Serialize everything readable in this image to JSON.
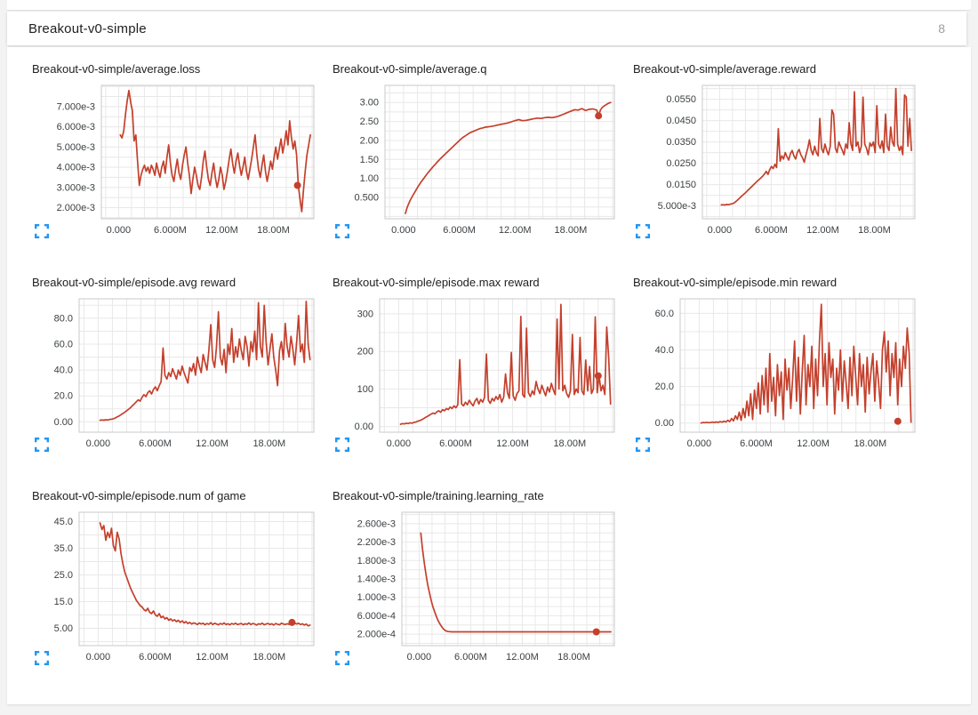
{
  "header": {
    "title": "Breakout-v0-simple",
    "badge": "8"
  },
  "colors": {
    "line": "#c4402c",
    "grid": "#e8e8e8",
    "plot_border": "#c9c9c9",
    "tick_text": "#3c4043",
    "icon_blue": "#2196f3"
  },
  "icons": {
    "fullscreen": "fullscreen-expand-icon"
  },
  "x_axis": {
    "xlim": [
      -2.0,
      22.7
    ],
    "minor_step": 1.5,
    "ticks": [
      {
        "v": 0,
        "label": "0.000"
      },
      {
        "v": 6,
        "label": "6.000M"
      },
      {
        "v": 12,
        "label": "12.00M"
      },
      {
        "v": 18,
        "label": "18.00M"
      }
    ]
  },
  "chart_data": [
    {
      "type": "line",
      "title": "Breakout-v0-simple/average.loss",
      "ylim": [
        0.00145,
        0.00805
      ],
      "y_grid_step": 0.0005,
      "y_ticks": [
        {
          "v": 0.002,
          "label": "2.000e-3"
        },
        {
          "v": 0.003,
          "label": "3.000e-3"
        },
        {
          "v": 0.004,
          "label": "4.000e-3"
        },
        {
          "v": 0.005,
          "label": "5.000e-3"
        },
        {
          "v": 0.006,
          "label": "6.000e-3"
        },
        {
          "v": 0.007,
          "label": "7.000e-3"
        }
      ],
      "x_start": 0.2,
      "x_end": 22.3,
      "value_scale": 0.001,
      "values": [
        5.6,
        5.45,
        5.8,
        6.6,
        7.3,
        7.8,
        7.2,
        6.8,
        5.3,
        5.6,
        4.3,
        3.1,
        3.6,
        3.9,
        4.1,
        3.8,
        4.0,
        3.7,
        4.1,
        3.9,
        3.6,
        4.2,
        3.8,
        3.5,
        4.0,
        4.3,
        3.7,
        4.5,
        5.1,
        4.2,
        3.6,
        3.3,
        3.9,
        4.4,
        3.7,
        3.4,
        4.1,
        4.6,
        5.0,
        4.2,
        3.6,
        2.7,
        3.4,
        4.0,
        3.6,
        3.1,
        2.9,
        3.5,
        4.3,
        4.8,
        4.0,
        3.4,
        3.1,
        3.7,
        4.2,
        3.5,
        3.0,
        3.4,
        4.0,
        3.6,
        2.9,
        3.3,
        3.8,
        4.4,
        4.9,
        4.2,
        3.7,
        4.3,
        4.7,
        4.1,
        3.6,
        4.0,
        4.5,
        3.8,
        3.4,
        3.9,
        4.4,
        5.0,
        5.6,
        4.6,
        3.9,
        3.5,
        4.1,
        4.6,
        3.8,
        3.3,
        3.8,
        4.3,
        3.9,
        4.5,
        5.0,
        4.4,
        4.9,
        5.4,
        4.7,
        5.2,
        5.8,
        5.1,
        6.3,
        5.5,
        4.9,
        5.3,
        4.6,
        3.1,
        2.4,
        1.8,
        2.9,
        3.8,
        4.6,
        5.1,
        5.6
      ],
      "marker": {
        "x": 20.8,
        "y": 0.0031
      }
    },
    {
      "type": "line",
      "title": "Breakout-v0-simple/average.q",
      "ylim": [
        -0.06,
        3.45
      ],
      "y_grid_step": 0.25,
      "y_ticks": [
        {
          "v": 0.5,
          "label": "0.500"
        },
        {
          "v": 1.0,
          "label": "1.00"
        },
        {
          "v": 1.5,
          "label": "1.50"
        },
        {
          "v": 2.0,
          "label": "2.00"
        },
        {
          "v": 2.5,
          "label": "2.50"
        },
        {
          "v": 3.0,
          "label": "3.00"
        }
      ],
      "points": [
        [
          0.2,
          0.08
        ],
        [
          0.4,
          0.25
        ],
        [
          0.7,
          0.42
        ],
        [
          1.0,
          0.55
        ],
        [
          1.3,
          0.68
        ],
        [
          1.6,
          0.8
        ],
        [
          1.9,
          0.91
        ],
        [
          2.2,
          1.01
        ],
        [
          2.5,
          1.11
        ],
        [
          2.8,
          1.2
        ],
        [
          3.1,
          1.29
        ],
        [
          3.4,
          1.37
        ],
        [
          3.7,
          1.45
        ],
        [
          4.0,
          1.53
        ],
        [
          4.3,
          1.6
        ],
        [
          4.6,
          1.67
        ],
        [
          4.9,
          1.74
        ],
        [
          5.2,
          1.81
        ],
        [
          5.5,
          1.88
        ],
        [
          5.8,
          1.95
        ],
        [
          6.1,
          2.02
        ],
        [
          6.4,
          2.08
        ],
        [
          6.7,
          2.13
        ],
        [
          7.0,
          2.18
        ],
        [
          7.3,
          2.22
        ],
        [
          7.6,
          2.25
        ],
        [
          7.9,
          2.28
        ],
        [
          8.2,
          2.31
        ],
        [
          8.5,
          2.33
        ],
        [
          8.8,
          2.35
        ],
        [
          9.1,
          2.36
        ],
        [
          9.4,
          2.37
        ],
        [
          9.7,
          2.38
        ],
        [
          10.0,
          2.4
        ],
        [
          10.4,
          2.42
        ],
        [
          10.8,
          2.44
        ],
        [
          11.2,
          2.46
        ],
        [
          11.6,
          2.49
        ],
        [
          12.0,
          2.52
        ],
        [
          12.4,
          2.55
        ],
        [
          12.8,
          2.52
        ],
        [
          13.2,
          2.53
        ],
        [
          13.6,
          2.55
        ],
        [
          14.0,
          2.57
        ],
        [
          14.4,
          2.59
        ],
        [
          14.8,
          2.58
        ],
        [
          15.2,
          2.6
        ],
        [
          15.6,
          2.61
        ],
        [
          16.0,
          2.6
        ],
        [
          16.4,
          2.62
        ],
        [
          16.8,
          2.65
        ],
        [
          17.2,
          2.69
        ],
        [
          17.6,
          2.73
        ],
        [
          18.0,
          2.77
        ],
        [
          18.4,
          2.81
        ],
        [
          18.8,
          2.8
        ],
        [
          19.2,
          2.84
        ],
        [
          19.6,
          2.79
        ],
        [
          20.0,
          2.82
        ],
        [
          20.4,
          2.83
        ],
        [
          20.8,
          2.8
        ],
        [
          21.0,
          2.65
        ],
        [
          21.2,
          2.8
        ],
        [
          21.4,
          2.87
        ],
        [
          21.6,
          2.91
        ],
        [
          21.8,
          2.94
        ],
        [
          22.0,
          2.97
        ],
        [
          22.3,
          3.0
        ]
      ],
      "marker": {
        "x": 21.0,
        "y": 2.65
      }
    },
    {
      "type": "line",
      "title": "Breakout-v0-simple/average.reward",
      "ylim": [
        -0.001,
        0.0615
      ],
      "y_grid_step": 0.005,
      "y_ticks": [
        {
          "v": 0.005,
          "label": "5.000e-3"
        },
        {
          "v": 0.015,
          "label": "0.0150"
        },
        {
          "v": 0.025,
          "label": "0.0250"
        },
        {
          "v": 0.035,
          "label": "0.0350"
        },
        {
          "v": 0.045,
          "label": "0.0450"
        },
        {
          "v": 0.055,
          "label": "0.0550"
        }
      ],
      "x_start": 0.2,
      "x_end": 22.3,
      "value_scale": 0.001,
      "values": [
        5.5,
        5.6,
        5.4,
        5.7,
        5.6,
        5.8,
        6.0,
        6.2,
        6.8,
        7.5,
        8.2,
        9.0,
        9.8,
        10.5,
        11.2,
        12.0,
        12.8,
        13.6,
        14.4,
        15.2,
        16.0,
        16.8,
        17.5,
        18.2,
        19.0,
        20.0,
        21.2,
        19.8,
        22.0,
        23.5,
        22.5,
        24.5,
        23.0,
        41.2,
        26.0,
        28.5,
        27.0,
        30.0,
        28.0,
        26.5,
        29.5,
        31.0,
        28.5,
        27.0,
        30.0,
        31.5,
        29.0,
        27.5,
        25.5,
        29.0,
        32.0,
        36.0,
        31.0,
        29.0,
        33.0,
        30.0,
        28.5,
        46.0,
        32.0,
        30.0,
        34.0,
        31.0,
        29.0,
        33.0,
        50.0,
        48.0,
        32.0,
        30.0,
        35.0,
        33.0,
        31.0,
        29.0,
        34.0,
        32.0,
        44.0,
        34.0,
        31.0,
        58.5,
        33.0,
        35.0,
        30.0,
        33.0,
        56.0,
        34.0,
        32.0,
        29.0,
        34.5,
        33.0,
        35.0,
        30.0,
        52.0,
        34.0,
        32.0,
        35.5,
        30.0,
        48.0,
        33.0,
        31.0,
        42.0,
        35.0,
        33.0,
        60.0,
        34.0,
        31.0,
        33.0,
        29.0,
        57.0,
        56.0,
        33.0,
        46.0,
        31.0
      ],
      "marker": null
    },
    {
      "type": "line",
      "title": "Breakout-v0-simple/episode.avg reward",
      "ylim": [
        -8,
        95
      ],
      "y_grid_step": 10,
      "y_ticks": [
        {
          "v": 0,
          "label": "0.00"
        },
        {
          "v": 20,
          "label": "20.0"
        },
        {
          "v": 40,
          "label": "40.0"
        },
        {
          "v": 60,
          "label": "60.0"
        },
        {
          "v": 80,
          "label": "80.0"
        }
      ],
      "x_start": 0.2,
      "x_end": 22.3,
      "value_scale": 1,
      "values": [
        1.2,
        1.5,
        1.3,
        1.6,
        1.4,
        1.8,
        2.0,
        2.4,
        3.0,
        3.8,
        4.6,
        5.5,
        6.5,
        7.5,
        8.6,
        9.8,
        11,
        12.5,
        14,
        15.5,
        17,
        16,
        19,
        21,
        19.5,
        22.5,
        24,
        21.5,
        25,
        27,
        24,
        28,
        31,
        57,
        36,
        33,
        38,
        35,
        41,
        37,
        33,
        40,
        36,
        43,
        38,
        34,
        30,
        42,
        39,
        45,
        36,
        50,
        43,
        38,
        52,
        46,
        40,
        55,
        75,
        48,
        42,
        58,
        85,
        50,
        44,
        56,
        38,
        60,
        52,
        72,
        46,
        58,
        50,
        64,
        55,
        48,
        66,
        58,
        43,
        62,
        54,
        70,
        48,
        92,
        58,
        50,
        90,
        62,
        44,
        56,
        68,
        50,
        40,
        28,
        55,
        62,
        48,
        76,
        58,
        50,
        66,
        56,
        44,
        62,
        82,
        54,
        60,
        46,
        93,
        60,
        48
      ],
      "marker": null
    },
    {
      "type": "line",
      "title": "Breakout-v0-simple/episode.max reward",
      "ylim": [
        -15,
        340
      ],
      "y_grid_step": 50,
      "y_ticks": [
        {
          "v": 0,
          "label": "0.00"
        },
        {
          "v": 100,
          "label": "100"
        },
        {
          "v": 200,
          "label": "200"
        },
        {
          "v": 300,
          "label": "300"
        }
      ],
      "x_start": 0.2,
      "x_end": 22.3,
      "value_scale": 1,
      "values": [
        6,
        8,
        7,
        9,
        8,
        10,
        9,
        11,
        12,
        14,
        16,
        18,
        21,
        24,
        27,
        30,
        33,
        36,
        34,
        39,
        42,
        38,
        45,
        42,
        48,
        45,
        52,
        48,
        55,
        50,
        58,
        178,
        60,
        55,
        65,
        58,
        70,
        62,
        55,
        68,
        75,
        60,
        72,
        65,
        78,
        193,
        70,
        62,
        75,
        68,
        80,
        72,
        85,
        65,
        78,
        140,
        90,
        75,
        197,
        82,
        70,
        88,
        95,
        293,
        85,
        78,
        262,
        90,
        80,
        95,
        85,
        120,
        100,
        88,
        110,
        95,
        82,
        105,
        92,
        115,
        98,
        85,
        286,
        100,
        325,
        95,
        110,
        88,
        78,
        95,
        245,
        85,
        100,
        90,
        237,
        95,
        85,
        177,
        95,
        160,
        88,
        100,
        292,
        90,
        135,
        95,
        110,
        85,
        265,
        185,
        60
      ],
      "marker": {
        "x": 21.0,
        "y": 135
      }
    },
    {
      "type": "line",
      "title": "Breakout-v0-simple/episode.min reward",
      "ylim": [
        -5,
        68
      ],
      "y_grid_step": 10,
      "y_ticks": [
        {
          "v": 0,
          "label": "0.00"
        },
        {
          "v": 20,
          "label": "20.0"
        },
        {
          "v": 40,
          "label": "40.0"
        },
        {
          "v": 60,
          "label": "60.0"
        }
      ],
      "x_start": 0.2,
      "x_end": 22.3,
      "value_scale": 1,
      "values": [
        0,
        0.3,
        0.2,
        0.4,
        0.2,
        0.3,
        0.5,
        0.3,
        0.6,
        0.4,
        0.8,
        0.5,
        1,
        0.6,
        1.5,
        0.8,
        2.5,
        1.2,
        4,
        2,
        6,
        1.5,
        8,
        3,
        12,
        4,
        16,
        2,
        18,
        8,
        22,
        5,
        26,
        10,
        30,
        6,
        38,
        12,
        25,
        4,
        32,
        15,
        28,
        2,
        35,
        18,
        30,
        8,
        25,
        45,
        12,
        36,
        5,
        28,
        48,
        10,
        32,
        20,
        42,
        8,
        35,
        15,
        45,
        65,
        20,
        38,
        10,
        44,
        25,
        35,
        5,
        30,
        18,
        40,
        12,
        34,
        22,
        8,
        36,
        15,
        42,
        25,
        10,
        38,
        20,
        32,
        6,
        36,
        16,
        28,
        38,
        12,
        34,
        22,
        8,
        40,
        50,
        28,
        45,
        15,
        38,
        25,
        44,
        10,
        35,
        20,
        42,
        30,
        52,
        38,
        0.5
      ],
      "marker": {
        "x": 20.9,
        "y": 1
      }
    },
    {
      "type": "line",
      "title": "Breakout-v0-simple/episode.num of game",
      "ylim": [
        -1.5,
        48.5
      ],
      "y_grid_step": 5,
      "y_ticks": [
        {
          "v": 5,
          "label": "5.00"
        },
        {
          "v": 15,
          "label": "15.0"
        },
        {
          "v": 25,
          "label": "25.0"
        },
        {
          "v": 35,
          "label": "35.0"
        },
        {
          "v": 45,
          "label": "45.0"
        }
      ],
      "x_start": 0.2,
      "x_end": 22.3,
      "value_scale": 1,
      "values": [
        44.5,
        42,
        43.5,
        38,
        41,
        39,
        42.5,
        36,
        34,
        41,
        38.5,
        33,
        29,
        26,
        24,
        22,
        20,
        18.5,
        17,
        15.5,
        14.5,
        13.5,
        13,
        12,
        11.5,
        12.5,
        11,
        10.5,
        11.5,
        10,
        9.5,
        10.5,
        9,
        9.5,
        8.5,
        9,
        8,
        8.5,
        7.8,
        8.2,
        7.5,
        8,
        7.2,
        7.8,
        7,
        7.5,
        6.8,
        7.2,
        6.6,
        7,
        6.8,
        6.4,
        7,
        6.6,
        6.9,
        6.3,
        6.8,
        6.5,
        7.1,
        6.4,
        6.9,
        6.6,
        6.3,
        6.8,
        6.5,
        7,
        6.4,
        6.7,
        6.3,
        6.8,
        6.5,
        6.9,
        6.4,
        6.6,
        6.8,
        6.3,
        6.7,
        6.5,
        7,
        6.4,
        6.8,
        6.6,
        6.2,
        6.7,
        6.5,
        6.9,
        6.3,
        6.6,
        6.8,
        6.4,
        6.7,
        6.2,
        6.8,
        6.5,
        6.3,
        6.9,
        6.6,
        6.4,
        6.7,
        6.5,
        7.2,
        7.6,
        7,
        6.6,
        6.9,
        6.4,
        6.7,
        6.2,
        6.6,
        5.9,
        6.2
      ],
      "marker": {
        "x": 20.4,
        "y": 7.2
      }
    },
    {
      "type": "line",
      "title": "Breakout-v0-simple/training.learning_rate",
      "ylim": [
        -5e-05,
        0.00285
      ],
      "y_grid_step": 0.0002,
      "y_ticks": [
        {
          "v": 0.0002,
          "label": "2.000e-4"
        },
        {
          "v": 0.0006,
          "label": "6.000e-4"
        },
        {
          "v": 0.001,
          "label": "1.000e-3"
        },
        {
          "v": 0.0014,
          "label": "1.400e-3"
        },
        {
          "v": 0.0018,
          "label": "1.800e-3"
        },
        {
          "v": 0.0022,
          "label": "2.200e-3"
        },
        {
          "v": 0.0026,
          "label": "2.600e-3"
        }
      ],
      "points": [
        [
          0.2,
          0.0024
        ],
        [
          0.4,
          0.00205
        ],
        [
          0.6,
          0.00175
        ],
        [
          0.8,
          0.0015
        ],
        [
          1.0,
          0.00128
        ],
        [
          1.2,
          0.0011
        ],
        [
          1.4,
          0.00094
        ],
        [
          1.6,
          0.0008
        ],
        [
          1.8,
          0.00069
        ],
        [
          2.0,
          0.00059
        ],
        [
          2.2,
          0.0005
        ],
        [
          2.4,
          0.00043
        ],
        [
          2.6,
          0.00037
        ],
        [
          2.8,
          0.00032
        ],
        [
          3.0,
          0.000285
        ],
        [
          3.2,
          0.000265
        ],
        [
          3.4,
          0.000255
        ],
        [
          3.8,
          0.00025
        ],
        [
          22.3,
          0.00025
        ]
      ],
      "marker": {
        "x": 20.6,
        "y": 0.00025
      }
    }
  ]
}
